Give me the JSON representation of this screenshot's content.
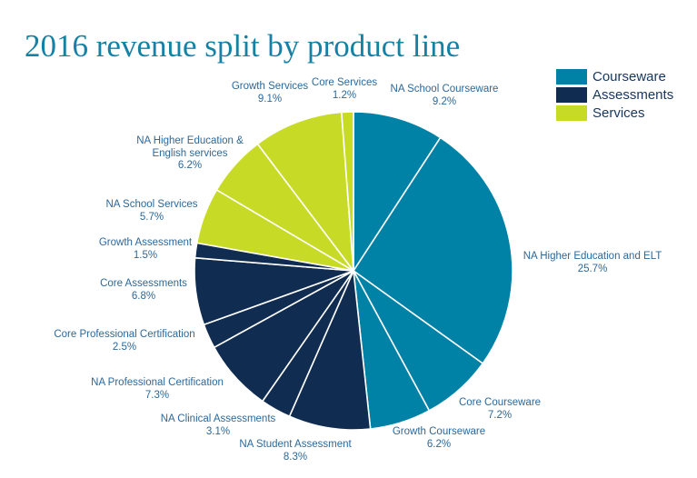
{
  "page": {
    "background": "#ffffff"
  },
  "title": {
    "text": "2016 revenue split by product line",
    "color": "#1581A5"
  },
  "legend": {
    "position": "top-right",
    "items": [
      {
        "label": "Courseware",
        "group": "Courseware"
      },
      {
        "label": "Assessments",
        "group": "Assessments"
      },
      {
        "label": "Services",
        "group": "Services"
      }
    ]
  },
  "chart_data": {
    "type": "pie",
    "title": "2016 revenue split by product line",
    "start_angle": "12-o-clock",
    "direction": "clockwise",
    "legend_position": "top-right",
    "grid": false,
    "colors": {
      "Courseware": "#0082A6",
      "Assessments": "#102C50",
      "Services": "#C7DB26"
    },
    "slices": [
      {
        "label": "NA School Courseware",
        "value": 9.2,
        "pct": "9.2%",
        "group": "Courseware"
      },
      {
        "label": "NA Higher Education and ELT",
        "value": 25.7,
        "pct": "25.7%",
        "group": "Courseware"
      },
      {
        "label": "Core Courseware",
        "value": 7.2,
        "pct": "7.2%",
        "group": "Courseware"
      },
      {
        "label": "Growth Courseware",
        "value": 6.2,
        "pct": "6.2%",
        "group": "Courseware"
      },
      {
        "label": "NA Student Assessment",
        "value": 8.3,
        "pct": "8.3%",
        "group": "Assessments"
      },
      {
        "label": "NA Clinical Assessments",
        "value": 3.1,
        "pct": "3.1%",
        "group": "Assessments"
      },
      {
        "label": "NA Professional Certification",
        "value": 7.3,
        "pct": "7.3%",
        "group": "Assessments"
      },
      {
        "label": "Core Professional Certification",
        "value": 2.5,
        "pct": "2.5%",
        "group": "Assessments"
      },
      {
        "label": "Core Assessments",
        "value": 6.8,
        "pct": "6.8%",
        "group": "Assessments"
      },
      {
        "label": "Growth Assessment",
        "value": 1.5,
        "pct": "1.5%",
        "group": "Assessments"
      },
      {
        "label": "NA School Services",
        "value": 5.7,
        "pct": "5.7%",
        "group": "Services"
      },
      {
        "label": "NA Higher Education & English services",
        "value": 6.2,
        "pct": "6.2%",
        "group": "Services"
      },
      {
        "label": "Growth Services",
        "value": 9.1,
        "pct": "9.1%",
        "group": "Services"
      },
      {
        "label": "Core Services",
        "value": 1.2,
        "pct": "1.2%",
        "group": "Services"
      }
    ]
  }
}
